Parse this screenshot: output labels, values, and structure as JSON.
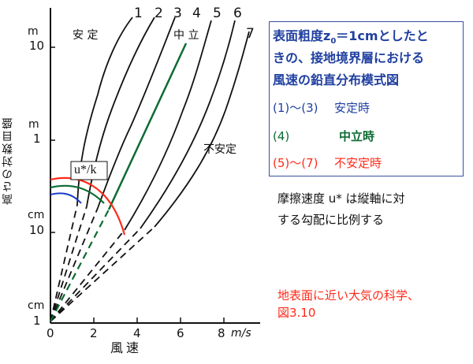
{
  "figure": {
    "y_axis_title": "高さの対数目盛",
    "x_axis_title": "風速",
    "x_ticks": [
      "0",
      "2",
      "4",
      "6",
      "8"
    ],
    "x_unit": "m/s",
    "y_ticks": [
      {
        "unit": "cm",
        "value": "1"
      },
      {
        "unit": "cm",
        "value": "10"
      },
      {
        "unit": "m",
        "value": "1"
      },
      {
        "unit": "m",
        "value": "10"
      }
    ],
    "curve_numbers": [
      "1",
      "2",
      "3",
      "4",
      "5",
      "6",
      "7"
    ],
    "region_stable": "安 定",
    "region_neutral": "中 立",
    "region_unstable": "不安定",
    "friction_label": "u*/k"
  },
  "legend_box": {
    "title_line1": "表面粗度z",
    "title_sub": "0",
    "title_line1_rest": "＝1cmとしたと",
    "title_line2": "きの、接地境界層における",
    "title_line3": "風速の鉛直分布模式図",
    "stable_range": "(1)～(3)",
    "stable_text": "安定時",
    "neutral_num": "(4)",
    "neutral_text": "中立時",
    "unstable_range": "(5)～(7)",
    "unstable_text": "不安定時"
  },
  "note": {
    "line1": "摩擦速度 u* は縦軸に対",
    "line2": "する勾配に比例する"
  },
  "source": {
    "line1": "地表面に近い大気の科学、",
    "line2": "図3.10"
  },
  "colors": {
    "blue_text": "#1f3fa0",
    "green": "#0d6b33",
    "red": "#ff2a1a",
    "arc_blue": "#1a3cc8",
    "ink": "#111111"
  }
}
